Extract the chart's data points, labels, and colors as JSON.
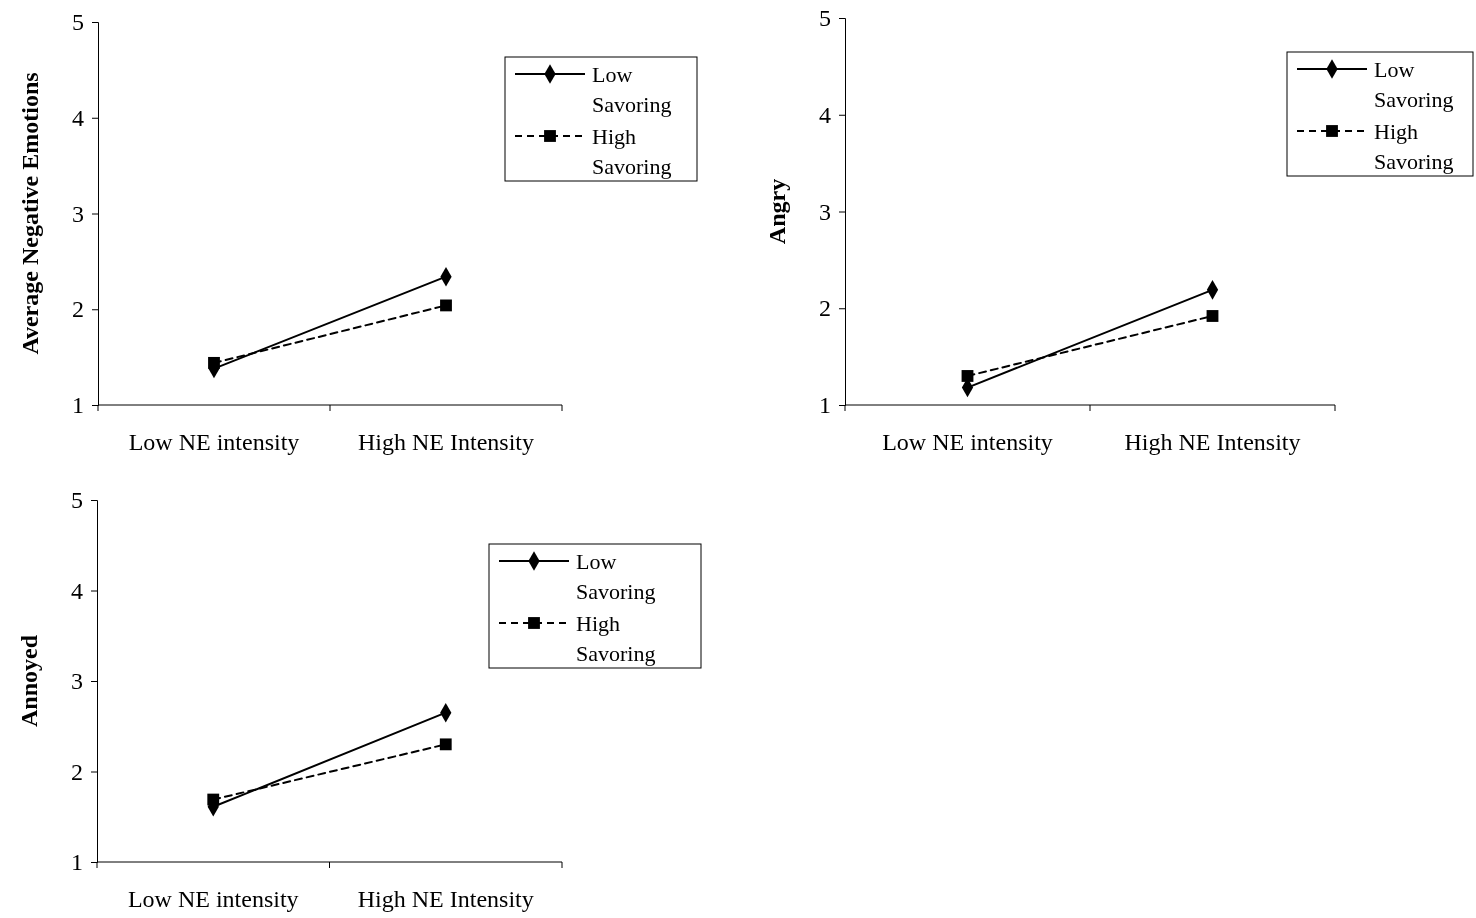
{
  "chart_data": [
    {
      "type": "line",
      "ylabel": "Average Negative Emotions",
      "categories": [
        "Low NE intensity",
        "High NE Intensity"
      ],
      "ylim": [
        1,
        5
      ],
      "yticks": [
        1,
        2,
        3,
        4,
        5
      ],
      "grid": false,
      "legend": "top right",
      "series": [
        {
          "name": "Low Savoring",
          "color": "#000000",
          "values": [
            1.38,
            2.34
          ],
          "marker": "diamond",
          "line_style": "solid"
        },
        {
          "name": "High Savoring",
          "color": "#000000",
          "values": [
            1.44,
            2.04
          ],
          "marker": "square",
          "line_style": "dashed"
        }
      ]
    },
    {
      "type": "line",
      "ylabel": "Angry",
      "categories": [
        "Low NE intensity",
        "High NE Intensity"
      ],
      "ylim": [
        1,
        5
      ],
      "yticks": [
        1,
        2,
        3,
        4,
        5
      ],
      "grid": false,
      "legend": "top right",
      "series": [
        {
          "name": "Low Savoring",
          "color": "#000000",
          "values": [
            1.18,
            2.19
          ],
          "marker": "diamond",
          "line_style": "solid"
        },
        {
          "name": "High Savoring",
          "color": "#000000",
          "values": [
            1.3,
            1.92
          ],
          "marker": "square",
          "line_style": "dashed"
        }
      ]
    },
    {
      "type": "line",
      "ylabel": "Annoyed",
      "categories": [
        "Low NE intensity",
        "High NE Intensity"
      ],
      "ylim": [
        1,
        5
      ],
      "yticks": [
        1,
        2,
        3,
        4,
        5
      ],
      "grid": false,
      "legend": "top right",
      "series": [
        {
          "name": "Low Savoring",
          "color": "#000000",
          "values": [
            1.61,
            2.65
          ],
          "marker": "diamond",
          "line_style": "solid"
        },
        {
          "name": "High Savoring",
          "color": "#000000",
          "values": [
            1.69,
            2.3
          ],
          "marker": "square",
          "line_style": "dashed"
        }
      ]
    }
  ]
}
